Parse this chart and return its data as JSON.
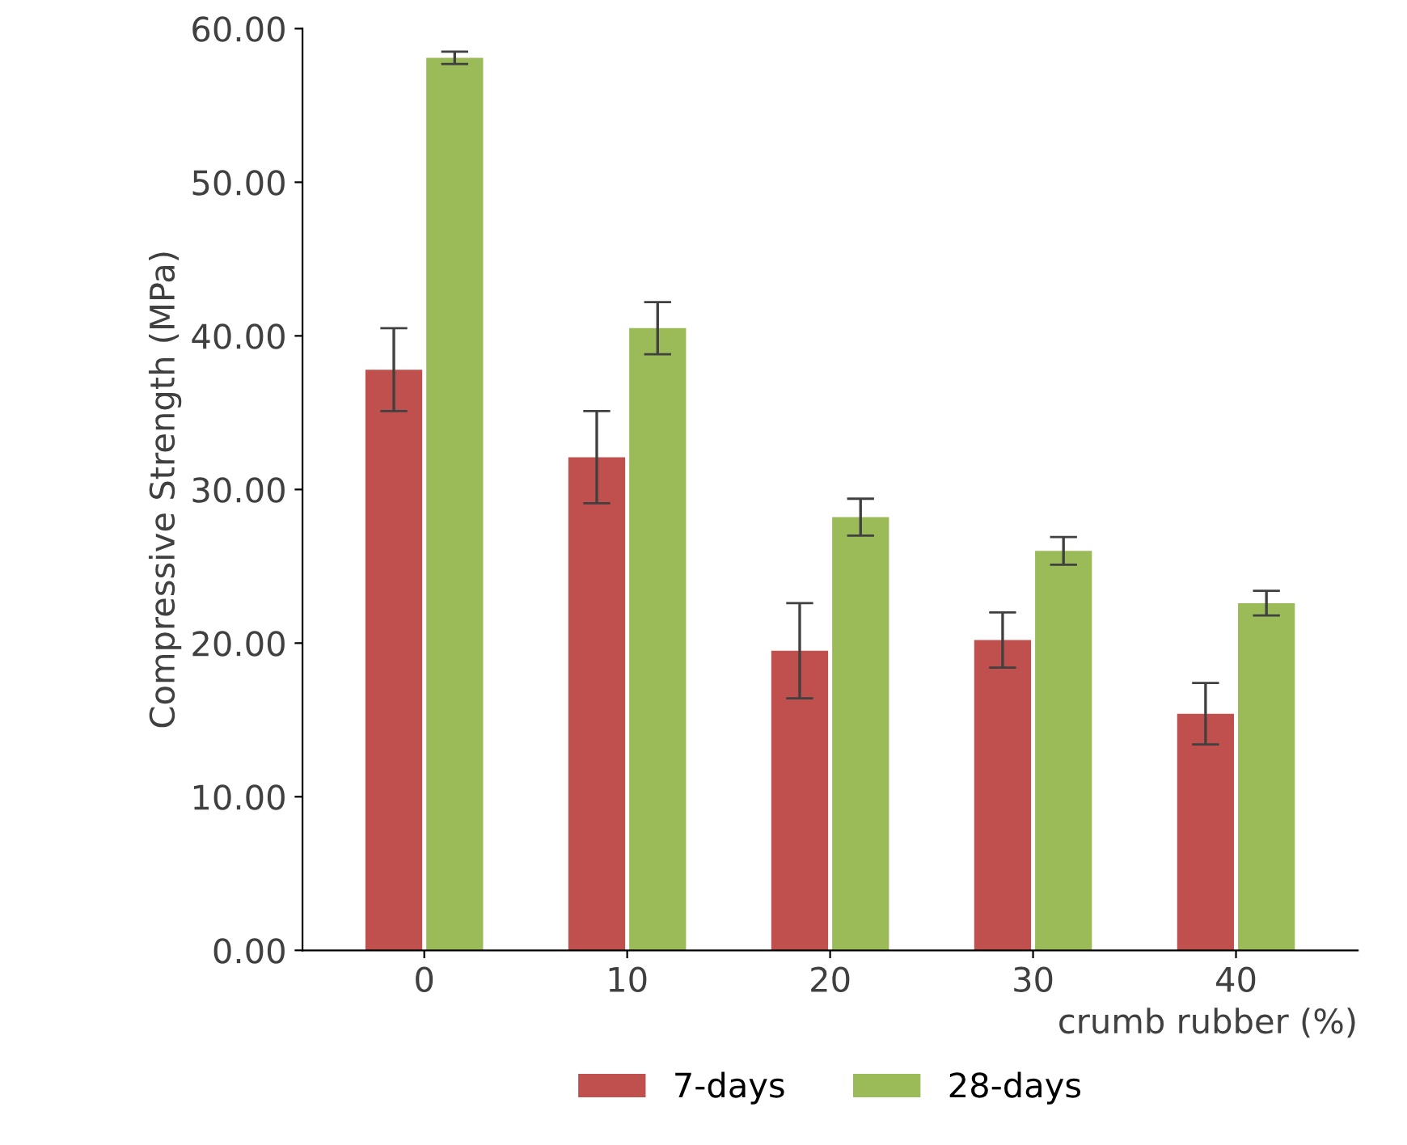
{
  "chart_data": {
    "type": "bar",
    "xlabel": "crumb rubber (%)",
    "ylabel": "Compressive Strength (MPa)",
    "categories": [
      "0",
      "10",
      "20",
      "30",
      "40"
    ],
    "series": [
      {
        "name": "7-days",
        "color": "#c0504d",
        "values": [
          37.8,
          32.1,
          19.5,
          20.2,
          15.4
        ],
        "errors": [
          2.7,
          3.0,
          3.1,
          1.8,
          2.0
        ]
      },
      {
        "name": "28-days",
        "color": "#9bbb59",
        "values": [
          58.1,
          40.5,
          28.2,
          26.0,
          22.6
        ],
        "errors": [
          0.4,
          1.7,
          1.2,
          0.9,
          0.8
        ]
      }
    ],
    "ylim": [
      0,
      60
    ],
    "yticks": [
      {
        "value": 0,
        "label": "0.00"
      },
      {
        "value": 10,
        "label": "10.00"
      },
      {
        "value": 20,
        "label": "20.00"
      },
      {
        "value": 30,
        "label": "30.00"
      },
      {
        "value": 40,
        "label": "40.00"
      },
      {
        "value": 50,
        "label": "50.00"
      },
      {
        "value": 60,
        "label": "60.00"
      }
    ],
    "grid": false,
    "legend": "bottom"
  }
}
